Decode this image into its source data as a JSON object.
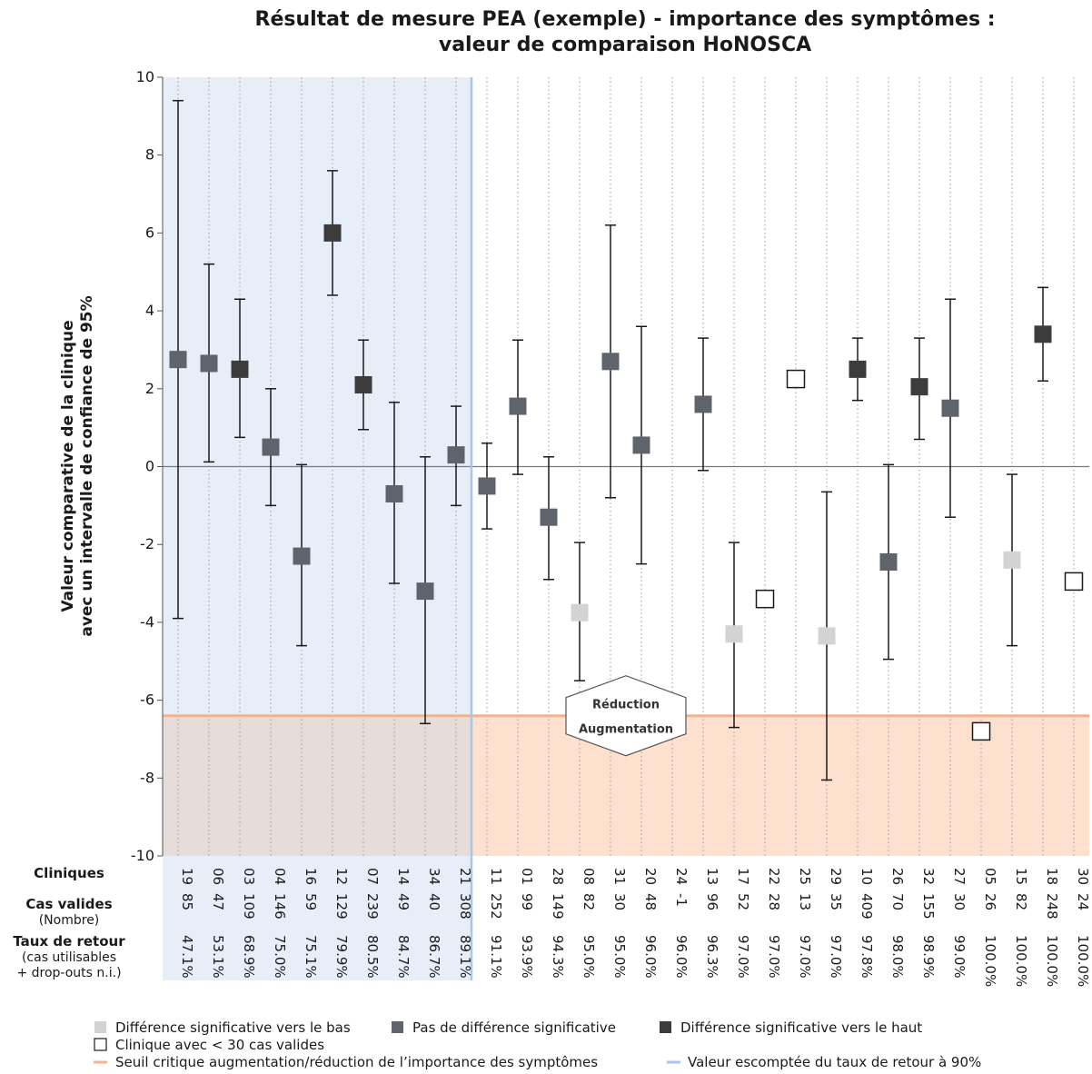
{
  "chart_data": {
    "type": "scatter",
    "title_lines": [
      "Résultat de mesure PEA (exemple) - importance des symptômes :",
      "valeur de comparaison HoNOSCA"
    ],
    "ylabel_lines": [
      "Valeur comparative de la clinique",
      "avec un intervalle de confiance de 95%"
    ],
    "ylim": [
      -10,
      10
    ],
    "yticks": [
      "10",
      "8",
      "6",
      "4",
      "2",
      "0",
      "-2",
      "-4",
      "-6",
      "-8",
      "-10"
    ],
    "threshold": -6.4,
    "expected_rate_after_index": 9,
    "annotation": {
      "top": "Réduction",
      "bottom": "Augmentation"
    },
    "row_labels": {
      "clinics": "Cliniques",
      "cases": "Cas valides",
      "cases_sub": "(Nombre)",
      "rate": "Taux de retour",
      "rate_sub1": "(cas utilisables",
      "rate_sub2": "+ drop-outs n.i.)"
    },
    "clinics": [
      {
        "id": "19",
        "n": "85",
        "rate": "47.1%",
        "value": 2.75,
        "lo": -3.9,
        "hi": 9.4,
        "cat": "none"
      },
      {
        "id": "06",
        "n": "47",
        "rate": "53.1%",
        "value": 2.65,
        "lo": 0.12,
        "hi": 5.2,
        "cat": "none"
      },
      {
        "id": "03",
        "n": "109",
        "rate": "68.9%",
        "value": 2.5,
        "lo": 0.75,
        "hi": 4.3,
        "cat": "up"
      },
      {
        "id": "04",
        "n": "146",
        "rate": "75.0%",
        "value": 0.5,
        "lo": -1.0,
        "hi": 2.0,
        "cat": "none"
      },
      {
        "id": "16",
        "n": "59",
        "rate": "75.1%",
        "value": -2.3,
        "lo": -4.6,
        "hi": 0.05,
        "cat": "none"
      },
      {
        "id": "12",
        "n": "129",
        "rate": "79.9%",
        "value": 6.0,
        "lo": 4.4,
        "hi": 7.6,
        "cat": "up"
      },
      {
        "id": "07",
        "n": "239",
        "rate": "80.5%",
        "value": 2.1,
        "lo": 0.95,
        "hi": 3.25,
        "cat": "up"
      },
      {
        "id": "14",
        "n": "49",
        "rate": "84.7%",
        "value": -0.7,
        "lo": -3.0,
        "hi": 1.65,
        "cat": "none"
      },
      {
        "id": "34",
        "n": "40",
        "rate": "86.7%",
        "value": -3.2,
        "lo": -6.6,
        "hi": 0.25,
        "cat": "none"
      },
      {
        "id": "21",
        "n": "308",
        "rate": "89.1%",
        "value": 0.3,
        "lo": -1.0,
        "hi": 1.55,
        "cat": "none"
      },
      {
        "id": "11",
        "n": "252",
        "rate": "91.1%",
        "value": -0.5,
        "lo": -1.6,
        "hi": 0.6,
        "cat": "none"
      },
      {
        "id": "01",
        "n": "99",
        "rate": "93.9%",
        "value": 1.55,
        "lo": -0.2,
        "hi": 3.25,
        "cat": "none"
      },
      {
        "id": "28",
        "n": "149",
        "rate": "94.3%",
        "value": -1.3,
        "lo": -2.9,
        "hi": 0.25,
        "cat": "none"
      },
      {
        "id": "08",
        "n": "82",
        "rate": "95.0%",
        "value": -3.75,
        "lo": -5.5,
        "hi": -1.95,
        "cat": "down"
      },
      {
        "id": "31",
        "n": "30",
        "rate": "95.0%",
        "value": 2.7,
        "lo": -0.8,
        "hi": 6.2,
        "cat": "none"
      },
      {
        "id": "20",
        "n": "48",
        "rate": "96.0%",
        "value": 0.55,
        "lo": -2.5,
        "hi": 3.6,
        "cat": "none"
      },
      {
        "id": "24",
        "n": "-1",
        "rate": "96.0%",
        "value": null,
        "lo": null,
        "hi": null,
        "cat": "none"
      },
      {
        "id": "13",
        "n": "96",
        "rate": "96.3%",
        "value": 1.6,
        "lo": -0.1,
        "hi": 3.3,
        "cat": "none"
      },
      {
        "id": "17",
        "n": "52",
        "rate": "97.0%",
        "value": -4.3,
        "lo": -6.7,
        "hi": -1.95,
        "cat": "down"
      },
      {
        "id": "22",
        "n": "28",
        "rate": "97.0%",
        "value": -3.4,
        "lo": null,
        "hi": null,
        "cat": "small"
      },
      {
        "id": "25",
        "n": "13",
        "rate": "97.0%",
        "value": 2.25,
        "lo": null,
        "hi": null,
        "cat": "small"
      },
      {
        "id": "29",
        "n": "35",
        "rate": "97.0%",
        "value": -4.35,
        "lo": -8.05,
        "hi": -0.65,
        "cat": "down"
      },
      {
        "id": "10",
        "n": "409",
        "rate": "97.8%",
        "value": 2.5,
        "lo": 1.7,
        "hi": 3.3,
        "cat": "up"
      },
      {
        "id": "26",
        "n": "70",
        "rate": "98.0%",
        "value": -2.45,
        "lo": -4.95,
        "hi": 0.05,
        "cat": "none"
      },
      {
        "id": "32",
        "n": "155",
        "rate": "98.9%",
        "value": 2.05,
        "lo": 0.7,
        "hi": 3.3,
        "cat": "up"
      },
      {
        "id": "27",
        "n": "30",
        "rate": "99.0%",
        "value": 1.5,
        "lo": -1.3,
        "hi": 4.3,
        "cat": "none"
      },
      {
        "id": "05",
        "n": "26",
        "rate": "100.0%",
        "value": -6.8,
        "lo": null,
        "hi": null,
        "cat": "small"
      },
      {
        "id": "15",
        "n": "82",
        "rate": "100.0%",
        "value": -2.4,
        "lo": -4.6,
        "hi": -0.2,
        "cat": "down"
      },
      {
        "id": "18",
        "n": "248",
        "rate": "100.0%",
        "value": 3.4,
        "lo": 2.2,
        "hi": 4.6,
        "cat": "up"
      },
      {
        "id": "30",
        "n": "24",
        "rate": "100.0%",
        "value": -2.95,
        "lo": null,
        "hi": null,
        "cat": "small"
      }
    ],
    "legend": [
      {
        "key": "down",
        "label": "Différence significative vers le bas"
      },
      {
        "key": "none",
        "label": "Pas de différence significative"
      },
      {
        "key": "up",
        "label": "Différence significative vers le haut"
      },
      {
        "key": "small",
        "label": "Clinique avec < 30 cas valides"
      },
      {
        "key": "threshold",
        "label": "Seuil critique augmentation/réduction de l’importance des symptômes"
      },
      {
        "key": "expected",
        "label": "Valeur escomptée du taux de retour à 90%"
      }
    ],
    "colors": {
      "down": "#d3d3d3",
      "none": "#5f646c",
      "up": "#3c3c3c",
      "small": "#ffffff",
      "threshold_line": "#f2b48e",
      "threshold_fill": "#fde0cd",
      "expected_line": "#a6c8e8",
      "expected_fill": "#e7eef8",
      "overlap_fill": "#e6dcda"
    }
  }
}
